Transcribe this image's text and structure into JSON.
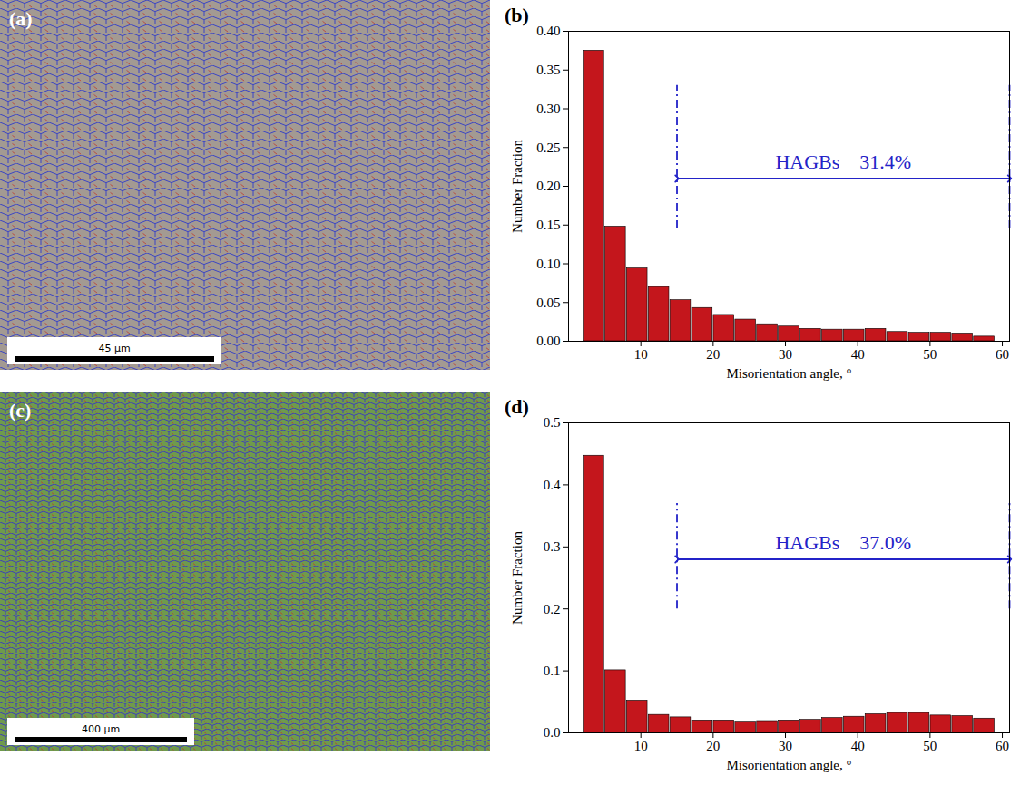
{
  "images": [
    {
      "label": "(a)",
      "scale_bar": "45 μm"
    },
    {
      "label": "(c)",
      "scale_bar": "400 μm"
    }
  ],
  "chart_data": [
    {
      "type": "bar",
      "panel": "(b)",
      "xlabel": "Misorientation angle, °",
      "ylabel": "Number Fraction",
      "bins": [
        2,
        5,
        8,
        11,
        14,
        17,
        20,
        23,
        26,
        29,
        32,
        35,
        38,
        41,
        44,
        47,
        50,
        53,
        56,
        59
      ],
      "values": [
        0.375,
        0.148,
        0.094,
        0.07,
        0.053,
        0.043,
        0.034,
        0.028,
        0.022,
        0.019,
        0.016,
        0.015,
        0.015,
        0.016,
        0.012,
        0.011,
        0.011,
        0.01,
        0.006
      ],
      "color": "#c4161c",
      "xlim": [
        0,
        61
      ],
      "xticks": [
        10,
        20,
        30,
        40,
        50,
        60
      ],
      "ylim": [
        0,
        0.4
      ],
      "yticks": [
        {
          "value": 0,
          "label": "0.00"
        },
        {
          "value": 0.05,
          "label": "0.05"
        },
        {
          "value": 0.1,
          "label": "0.10"
        },
        {
          "value": 0.15,
          "label": "0.15"
        },
        {
          "value": 0.2,
          "label": "0.20"
        },
        {
          "value": 0.25,
          "label": "0.25"
        },
        {
          "value": 0.3,
          "label": "0.30"
        },
        {
          "value": 0.35,
          "label": "0.35"
        },
        {
          "value": 0.4,
          "label": "0.40"
        }
      ],
      "annotation": {
        "text": "HAGBs    31.4%",
        "x": [
          15,
          61
        ],
        "y": 0.21,
        "y_extent": [
          0.145,
          0.33
        ],
        "color": "#2323c8"
      }
    },
    {
      "type": "bar",
      "panel": "(d)",
      "xlabel": "Misorientation angle, °",
      "ylabel": "Number Fraction",
      "bins": [
        2,
        5,
        8,
        11,
        14,
        17,
        20,
        23,
        26,
        29,
        32,
        35,
        38,
        41,
        44,
        47,
        50,
        53,
        56,
        59
      ],
      "values": [
        0.447,
        0.101,
        0.052,
        0.029,
        0.025,
        0.02,
        0.02,
        0.018,
        0.019,
        0.02,
        0.021,
        0.024,
        0.026,
        0.03,
        0.032,
        0.032,
        0.028,
        0.027,
        0.023
      ],
      "color": "#c4161c",
      "xlim": [
        0,
        61
      ],
      "xticks": [
        10,
        20,
        30,
        40,
        50,
        60
      ],
      "ylim": [
        0,
        0.5
      ],
      "yticks": [
        {
          "value": 0,
          "label": "0.0"
        },
        {
          "value": 0.1,
          "label": "0.1"
        },
        {
          "value": 0.2,
          "label": "0.2"
        },
        {
          "value": 0.3,
          "label": "0.3"
        },
        {
          "value": 0.4,
          "label": "0.4"
        },
        {
          "value": 0.5,
          "label": "0.5"
        }
      ],
      "annotation": {
        "text": "HAGBs    37.0%",
        "x": [
          15,
          61
        ],
        "y": 0.28,
        "y_extent": [
          0.2,
          0.37
        ],
        "color": "#2323c8"
      }
    }
  ]
}
